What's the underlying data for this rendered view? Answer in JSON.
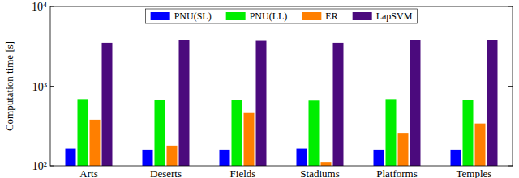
{
  "chart_data": {
    "type": "bar",
    "y_label": "Computation time [s]",
    "categories": [
      "Arts",
      "Deserts",
      "Fields",
      "Stadiums",
      "Platforms",
      "Temples"
    ],
    "series": [
      {
        "name": "PNU(SL)",
        "color": "#0000ff",
        "values": [
          165,
          160,
          160,
          165,
          160,
          160
        ]
      },
      {
        "name": "PNU(LL)",
        "color": "#00ee00",
        "values": [
          690,
          680,
          670,
          660,
          690,
          680
        ]
      },
      {
        "name": "ER",
        "color": "#ff7f00",
        "values": [
          380,
          180,
          460,
          112,
          260,
          340
        ]
      },
      {
        "name": "LapSVM",
        "color": "#4b0a7d",
        "values": [
          3500,
          3750,
          3700,
          3500,
          3800,
          3800
        ]
      }
    ],
    "ylim": [
      100,
      10000
    ],
    "yticks": [
      {
        "value": 100,
        "label": "10²"
      },
      {
        "value": 1000,
        "label": "10³"
      },
      {
        "value": 10000,
        "label": "10⁴"
      }
    ],
    "log": "y",
    "legend": "top"
  }
}
